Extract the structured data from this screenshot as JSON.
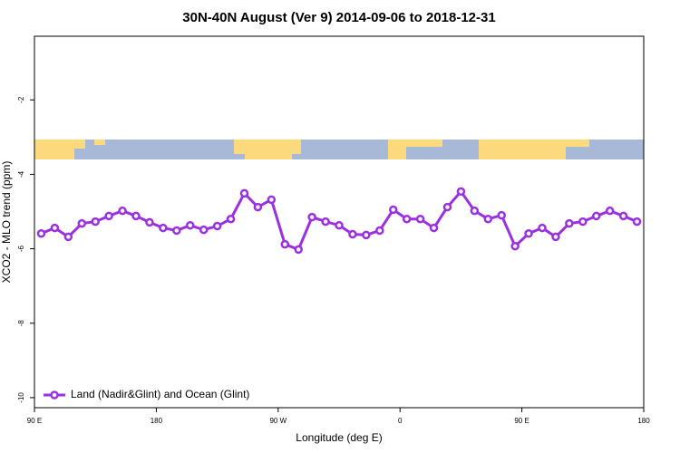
{
  "chart_data": {
    "type": "line",
    "title": "30N-40N August (Ver 9)   2014-09-06 to 2018-12-31",
    "x_label": "Longitude (deg E)",
    "y_label": "XCO2 - MLO trend (ppm)",
    "x": [
      95,
      105,
      115,
      125,
      135,
      145,
      155,
      165,
      175,
      185,
      195,
      205,
      215,
      225,
      235,
      245,
      255,
      265,
      275,
      285,
      295,
      305,
      315,
      325,
      335,
      345,
      355,
      365,
      375,
      385,
      395,
      405,
      415,
      425,
      435,
      445,
      455,
      465,
      475,
      485,
      495,
      505,
      515,
      525,
      535
    ],
    "series": [
      {
        "name": "Land (Nadir&Glint) and Ocean (Glint)",
        "color": "#9b30e0",
        "values": [
          -5.59,
          -5.44,
          -5.68,
          -5.32,
          -5.27,
          -5.12,
          -4.98,
          -5.12,
          -5.29,
          -5.44,
          -5.51,
          -5.37,
          -5.49,
          -5.39,
          -5.2,
          -4.51,
          -4.88,
          -4.68,
          -5.88,
          -6.02,
          -5.15,
          -5.27,
          -5.37,
          -5.61,
          -5.63,
          -5.51,
          -4.95,
          -5.2,
          -5.2,
          -5.44,
          -4.88,
          -4.46,
          -4.98,
          -5.2,
          -5.1,
          -5.93,
          -5.59,
          -5.44,
          -5.68,
          -5.32,
          -5.27,
          -5.12,
          -4.98,
          -5.12,
          -5.27
        ]
      }
    ],
    "xlim": [
      90,
      540
    ],
    "xticks": [
      {
        "value": 90,
        "label": "90 E"
      },
      {
        "value": 180,
        "label": "180"
      },
      {
        "value": 270,
        "label": "90 W"
      },
      {
        "value": 360,
        "label": "0"
      },
      {
        "value": 450,
        "label": "90 E"
      },
      {
        "value": 540,
        "label": "180"
      }
    ],
    "ylim": [
      -10.27,
      -0.29
    ],
    "yticks": [
      -10,
      -8,
      -6,
      -4,
      -2
    ],
    "legend": "bottom-left"
  }
}
